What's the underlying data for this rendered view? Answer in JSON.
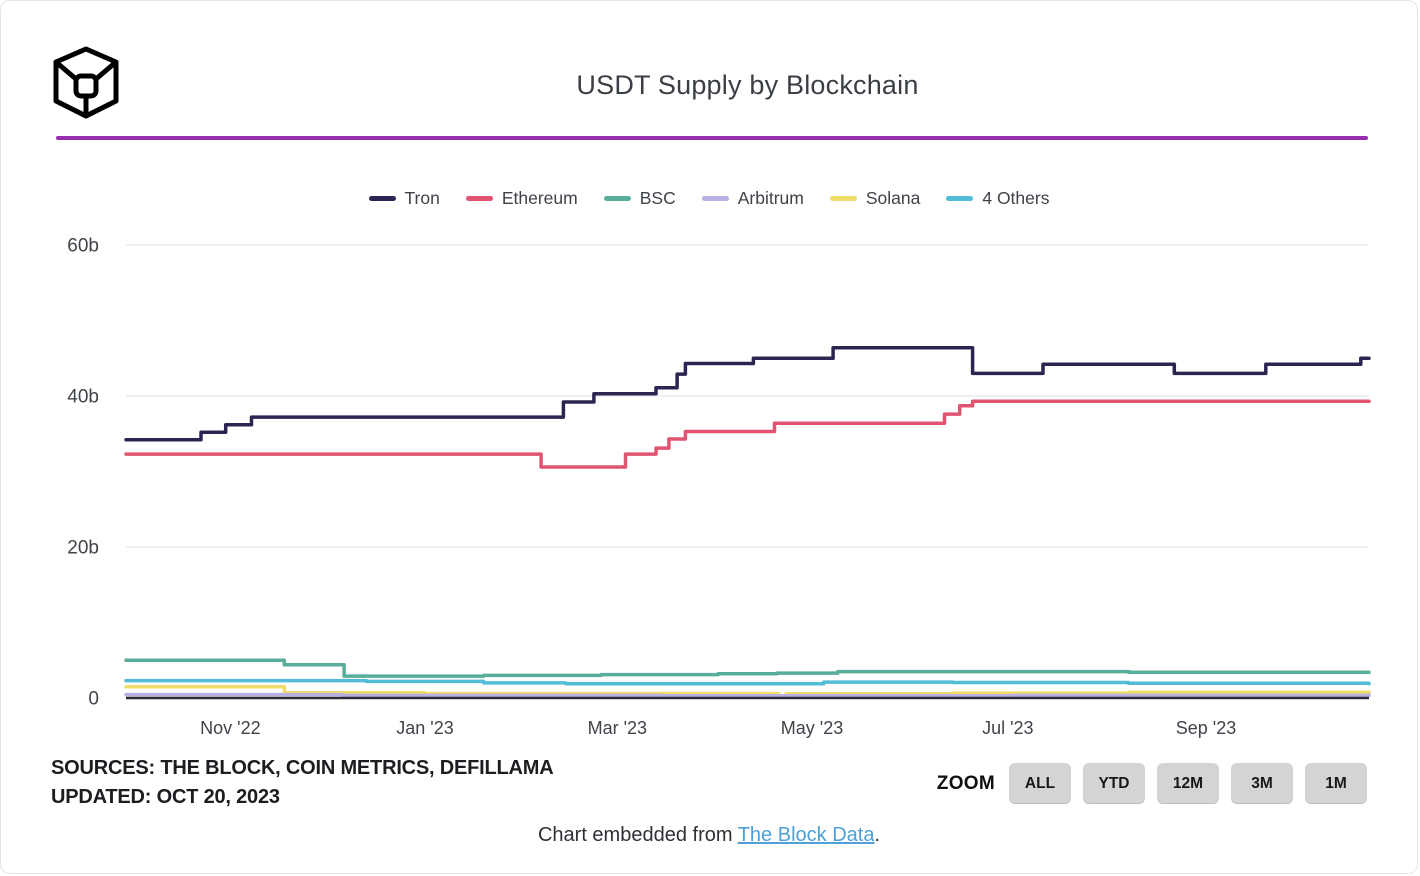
{
  "header": {
    "title": "USDT Supply by Blockchain",
    "logo": "the-block-cube-logo"
  },
  "colors": {
    "divider": "#962fb0",
    "link": "#4ea0d6",
    "gridline": "#ececf0",
    "axis_line": "#2c2b38",
    "text_dark": "#3f434a"
  },
  "chart_data": {
    "type": "line",
    "step": true,
    "title": "USDT Supply by Blockchain",
    "xlabel": "",
    "ylabel": "",
    "grid": "horizontal-only",
    "legend_position": "top-center",
    "x_domain": [
      2022.745,
      2023.805
    ],
    "y_domain": [
      0,
      60
    ],
    "yticks": [
      {
        "v": 0,
        "label": "0"
      },
      {
        "v": 20,
        "label": "20b"
      },
      {
        "v": 40,
        "label": "40b"
      },
      {
        "v": 60,
        "label": "60b"
      }
    ],
    "xticks": [
      {
        "date": 2022.834,
        "label": "Nov '22"
      },
      {
        "date": 2023.0,
        "label": "Jan '23"
      },
      {
        "date": 2023.164,
        "label": "Mar '23"
      },
      {
        "date": 2023.33,
        "label": "May '23"
      },
      {
        "date": 2023.497,
        "label": "Jul '23"
      },
      {
        "date": 2023.666,
        "label": "Sep '23"
      }
    ],
    "unit": "billions USDT",
    "series": [
      {
        "name": "Tron",
        "color": "#2b2651",
        "points": [
          [
            2022.745,
            34.2
          ],
          [
            2022.809,
            35.2
          ],
          [
            2022.83,
            36.2
          ],
          [
            2022.852,
            37.2
          ],
          [
            2023.118,
            39.2
          ],
          [
            2023.144,
            40.3
          ],
          [
            2023.197,
            41.1
          ],
          [
            2023.215,
            42.9
          ],
          [
            2023.222,
            44.3
          ],
          [
            2023.28,
            45.0
          ],
          [
            2023.348,
            46.4
          ],
          [
            2023.467,
            43.0
          ],
          [
            2023.527,
            44.2
          ],
          [
            2023.639,
            43.0
          ],
          [
            2023.717,
            44.2
          ],
          [
            2023.798,
            45.0
          ],
          [
            2023.805,
            45.0
          ]
        ]
      },
      {
        "name": "Ethereum",
        "color": "#e05471",
        "points": [
          [
            2022.745,
            32.3
          ],
          [
            2023.099,
            30.6
          ],
          [
            2023.171,
            32.3
          ],
          [
            2023.197,
            33.1
          ],
          [
            2023.208,
            34.3
          ],
          [
            2023.222,
            35.3
          ],
          [
            2023.298,
            36.4
          ],
          [
            2023.443,
            37.6
          ],
          [
            2023.456,
            38.7
          ],
          [
            2023.467,
            39.3
          ],
          [
            2023.805,
            39.3
          ]
        ]
      },
      {
        "name": "BSC",
        "color": "#58ae9a",
        "points": [
          [
            2022.745,
            5.0
          ],
          [
            2022.88,
            4.4
          ],
          [
            2022.931,
            2.9
          ],
          [
            2023.05,
            3.0
          ],
          [
            2023.15,
            3.1
          ],
          [
            2023.25,
            3.2
          ],
          [
            2023.3,
            3.3
          ],
          [
            2023.352,
            3.5
          ],
          [
            2023.6,
            3.4
          ],
          [
            2023.805,
            3.4
          ]
        ]
      },
      {
        "name": "Arbitrum",
        "color": "#b8b0e2",
        "points": [
          [
            2022.745,
            0.45
          ],
          [
            2022.93,
            0.35
          ],
          [
            2023.2,
            0.3
          ],
          [
            2023.5,
            0.35
          ],
          [
            2023.805,
            0.4
          ]
        ]
      },
      {
        "name": "Solana",
        "color": "#f0dc69",
        "points": [
          [
            2022.745,
            1.5
          ],
          [
            2022.88,
            0.7
          ],
          [
            2023.0,
            0.6
          ],
          [
            2023.296,
            0.55
          ],
          [
            2023.302,
            0.25
          ],
          [
            2023.308,
            0.55
          ],
          [
            2023.45,
            0.65
          ],
          [
            2023.6,
            0.75
          ],
          [
            2023.805,
            0.8
          ]
        ]
      },
      {
        "name": "4 Others",
        "color": "#53bcd7",
        "points": [
          [
            2022.745,
            2.3
          ],
          [
            2022.95,
            2.2
          ],
          [
            2023.05,
            2.0
          ],
          [
            2023.12,
            1.9
          ],
          [
            2023.34,
            2.1
          ],
          [
            2023.45,
            2.05
          ],
          [
            2023.6,
            1.95
          ],
          [
            2023.805,
            1.9
          ]
        ]
      }
    ]
  },
  "sources": {
    "line1": "SOURCES: THE BLOCK, COIN METRICS, DEFILLAMA",
    "line2": "UPDATED: OCT 20, 2023"
  },
  "zoom": {
    "label": "ZOOM",
    "buttons": [
      "ALL",
      "YTD",
      "12M",
      "3M",
      "1M"
    ]
  },
  "embed": {
    "prefix": "Chart embedded from ",
    "link": "The Block Data",
    "suffix": "."
  }
}
